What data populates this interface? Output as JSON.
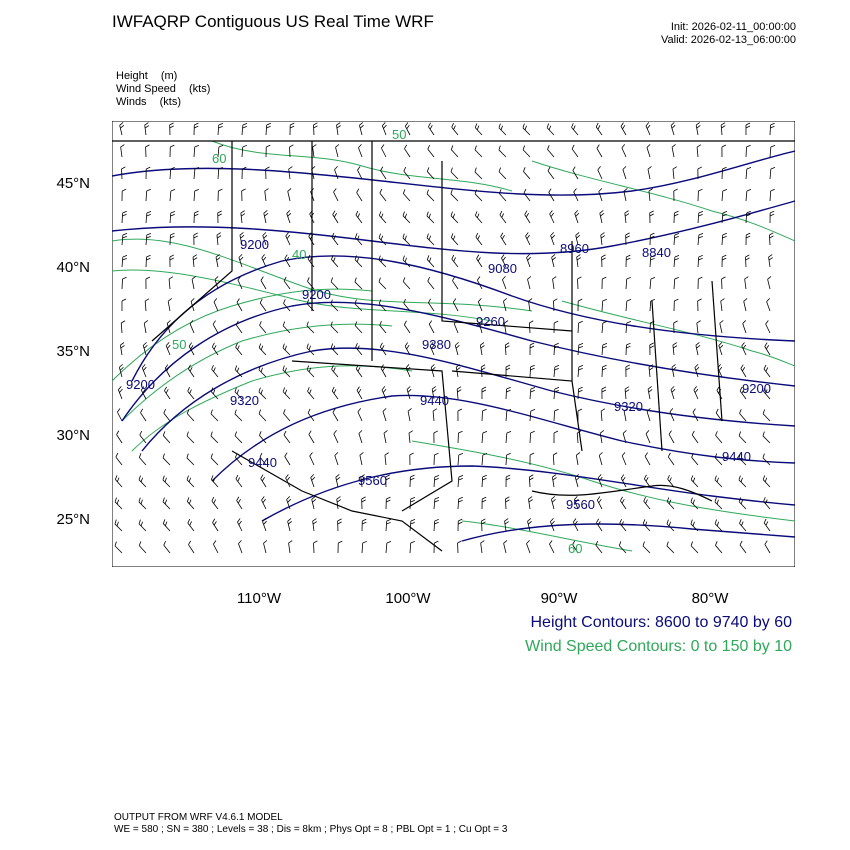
{
  "header": {
    "title": "IWFAQRP Contiguous US Real Time WRF",
    "init": "Init: 2026-02-11_00:00:00",
    "valid": "Valid: 2026-02-13_06:00:00"
  },
  "legend": [
    {
      "name": "Height",
      "unit": "(m)"
    },
    {
      "name": "Wind Speed",
      "unit": "(kts)"
    },
    {
      "name": "Winds",
      "unit": "(kts)"
    }
  ],
  "axes": {
    "latitudes": [
      "45°N",
      "40°N",
      "35°N",
      "30°N",
      "25°N"
    ],
    "longitudes": [
      "110°W",
      "100°W",
      "90°W",
      "80°W"
    ]
  },
  "contour_labels": {
    "height": [
      "9200",
      "8960",
      "8840",
      "9080",
      "9200",
      "9260",
      "9380",
      "9200",
      "9320",
      "9440",
      "9320",
      "9200",
      "9440",
      "9560",
      "9560",
      "9440"
    ],
    "wind_speed": [
      "60",
      "50",
      "40",
      "50",
      "60"
    ]
  },
  "notes": {
    "height": "Height Contours: 8600 to 9740 by 60",
    "wind_speed": "Wind Speed Contours: 0 to 150 by 10"
  },
  "footer": {
    "line1": "OUTPUT FROM WRF V4.6.1 MODEL",
    "line2": "WE = 580 ; SN = 380 ; Levels = 38 ; Dis = 8km ; Phys Opt = 8 ; PBL Opt = 1 ; Cu Opt = 3"
  },
  "colors": {
    "height_contour": "#0a0a7a",
    "wind_contour": "#2fa85a",
    "map_lines": "#000000"
  }
}
